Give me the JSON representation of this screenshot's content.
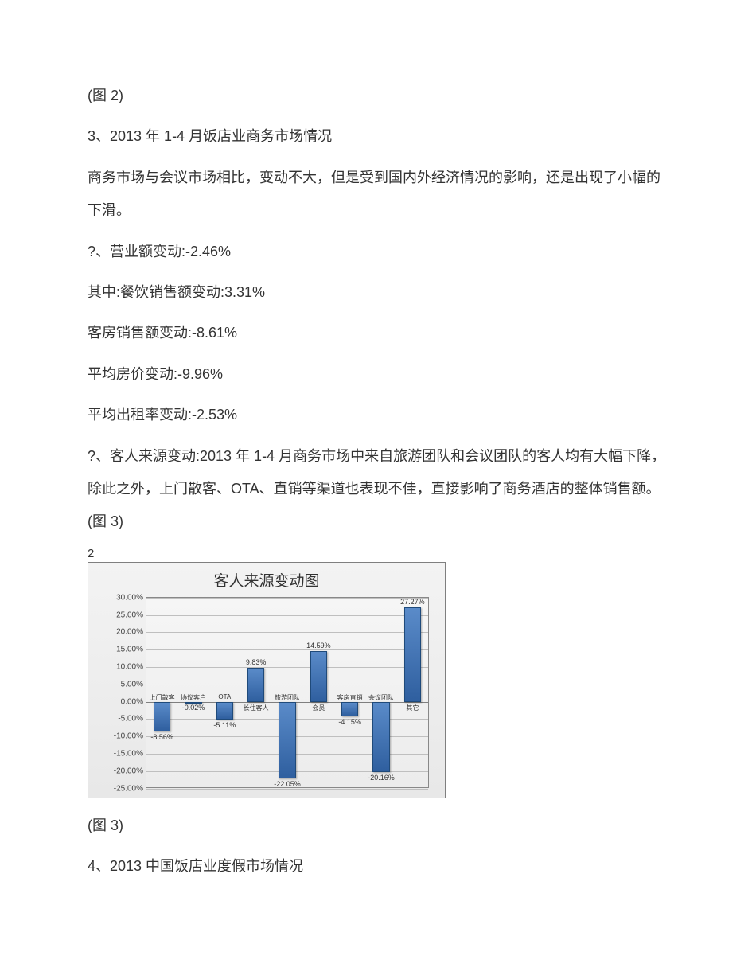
{
  "texts": {
    "fig2_caption": "(图 2)",
    "section3_title": "3、2013 年 1-4 月饭店业商务市场情况",
    "section3_intro": "商务市场与会议市场相比，变动不大，但是受到国内外经济情况的影响，还是出现了小幅的下滑。",
    "metric_revenue": "?、营业额变动:-2.46%",
    "metric_catering": "其中:餐饮销售额变动:3.31%",
    "metric_room_sales": "客房销售额变动:-8.61%",
    "metric_avg_price": "平均房价变动:-9.96%",
    "metric_avg_occupancy": "平均出租率变动:-2.53%",
    "section3_body": "?、客人来源变动:2013 年 1-4 月商务市场中来自旅游团队和会议团队的客人均有大幅下降，除此之外，上门散客、OTA、直销等渠道也表现不佳，直接影响了商务酒店的整体销售额。(图 3)",
    "page_num": "2",
    "fig3_caption": "(图 3)",
    "section4_title": "4、2013 中国饭店业度假市场情况"
  },
  "chart": {
    "title": "客人来源变动图",
    "ymin": -25,
    "ymax": 30,
    "ystep": 5,
    "grid_color": "#bfbfbf",
    "bar_color_top": "#5a8bc9",
    "bar_color_bottom": "#2f5f9f",
    "bar_border": "#1f4a7a",
    "background_top": "#f3f3f3",
    "background_bottom": "#e8e8e8",
    "series": [
      {
        "category": "上门散客",
        "value": -8.56,
        "label": "-8.56%"
      },
      {
        "category": "协议客户",
        "value": -0.02,
        "label": "-0.02%"
      },
      {
        "category": "OTA",
        "value": -5.11,
        "label": "-5.11%"
      },
      {
        "category": "长住客人",
        "value": 9.83,
        "label": "9.83%"
      },
      {
        "category": "旅游团队",
        "value": -22.05,
        "label": "-22.05%"
      },
      {
        "category": "会员",
        "value": 14.59,
        "label": "14.59%"
      },
      {
        "category": "客房直销",
        "value": -4.15,
        "label": "-4.15%"
      },
      {
        "category": "会议团队",
        "value": -20.16,
        "label": "-20.16%"
      },
      {
        "category": "其它",
        "value": 27.27,
        "label": "27.27%"
      }
    ]
  }
}
